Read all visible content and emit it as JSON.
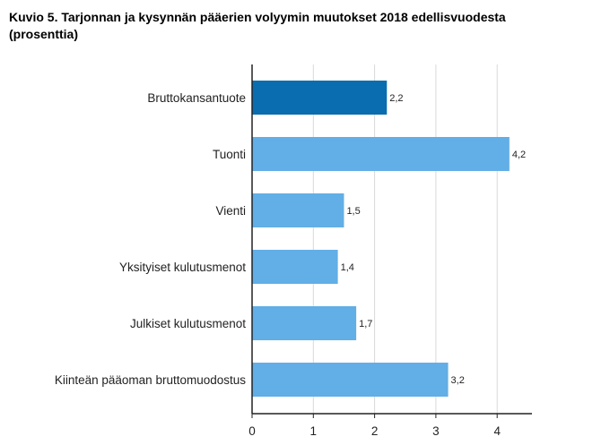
{
  "title": {
    "line1": "Kuvio 5. Tarjonnan ja kysynnän pääerien volyymin muutokset 2018 edellisvuodesta",
    "line2": "(prosenttia)"
  },
  "chart_data": {
    "type": "bar",
    "orientation": "horizontal",
    "title": "Kuvio 5. Tarjonnan ja kysynnän pääerien volyymin muutokset 2018 edellisvuodesta (prosenttia)",
    "categories": [
      "Bruttokansantuote",
      "Tuonti",
      "Vienti",
      "Yksityiset kulutusmenot",
      "Julkiset kulutusmenot",
      "Kiinteän pääoman bruttomuodostus"
    ],
    "values": [
      2.2,
      4.2,
      1.5,
      1.4,
      1.7,
      3.2
    ],
    "value_labels": [
      "2,2",
      "4,2",
      "1,5",
      "1,4",
      "1,7",
      "3,2"
    ],
    "xticks": [
      0,
      1,
      2,
      3,
      4
    ],
    "xlim": [
      0,
      4.6
    ],
    "grid": "vertical",
    "legend": "none",
    "colors": {
      "highlight": "#0a6db0",
      "default": "#62aee6",
      "grid": "#d9d9d9",
      "axis": "#222222"
    }
  }
}
